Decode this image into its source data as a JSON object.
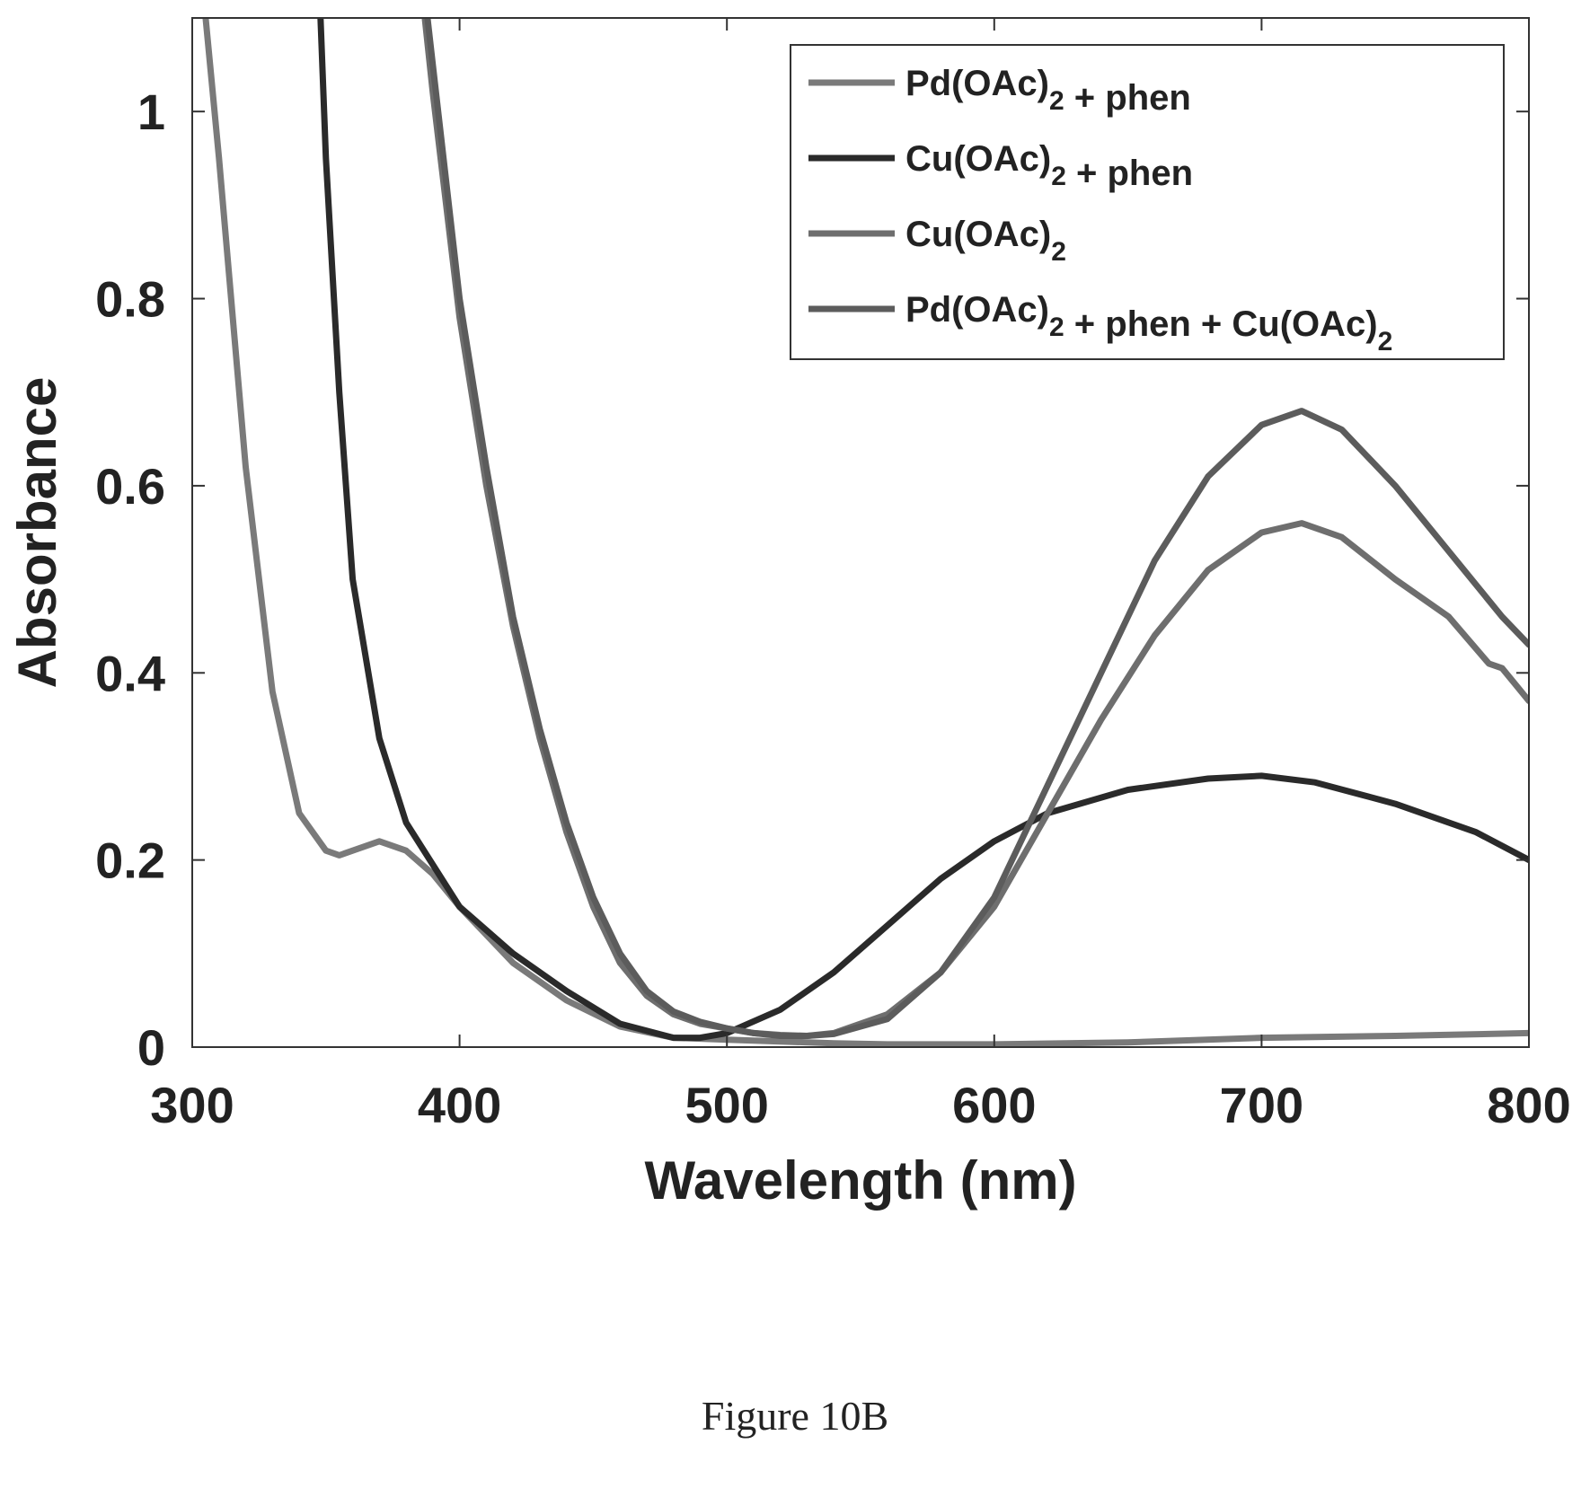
{
  "caption": "Figure 10B",
  "chart_data": {
    "type": "line",
    "title": "",
    "xlabel": "Wavelength (nm)",
    "ylabel": "Absorbance",
    "xlim": [
      300,
      800
    ],
    "ylim": [
      0,
      1.1
    ],
    "xticks": [
      300,
      400,
      500,
      600,
      700,
      800
    ],
    "xtick_labels": [
      "300",
      "400",
      "500",
      "600",
      "700",
      "800"
    ],
    "yticks": [
      0,
      0.2,
      0.4,
      0.6,
      0.8,
      1
    ],
    "ytick_labels": [
      "0",
      "0.2",
      "0.4",
      "0.6",
      "0.8",
      "1"
    ],
    "grid": false,
    "legend_position": "top-right",
    "series": [
      {
        "name": "Pd(OAc)2 + phen",
        "legend_parts": [
          {
            "text": "Pd(OAc)",
            "sub": false
          },
          {
            "text": "2",
            "sub": true
          },
          {
            "text": " + phen",
            "sub": false
          }
        ],
        "color": "#7a7a7a",
        "x": [
          305,
          310,
          320,
          330,
          340,
          350,
          355,
          360,
          370,
          380,
          390,
          400,
          420,
          440,
          460,
          480,
          500,
          520,
          540,
          560,
          600,
          650,
          700,
          750,
          800
        ],
        "y": [
          1.1,
          0.95,
          0.62,
          0.38,
          0.25,
          0.21,
          0.205,
          0.21,
          0.22,
          0.21,
          0.185,
          0.15,
          0.09,
          0.05,
          0.022,
          0.01,
          0.008,
          0.006,
          0.004,
          0.003,
          0.003,
          0.005,
          0.01,
          0.012,
          0.015
        ]
      },
      {
        "name": "Cu(OAc)2 + phen",
        "legend_parts": [
          {
            "text": "Cu(OAc)",
            "sub": false
          },
          {
            "text": "2",
            "sub": true
          },
          {
            "text": " + phen",
            "sub": false
          }
        ],
        "color": "#2a2a2a",
        "x": [
          348,
          350,
          355,
          360,
          370,
          380,
          400,
          420,
          440,
          460,
          480,
          490,
          500,
          520,
          540,
          560,
          580,
          600,
          620,
          650,
          680,
          700,
          720,
          750,
          780,
          800
        ],
        "y": [
          1.1,
          0.95,
          0.7,
          0.5,
          0.33,
          0.24,
          0.15,
          0.1,
          0.06,
          0.025,
          0.01,
          0.01,
          0.015,
          0.04,
          0.08,
          0.13,
          0.18,
          0.22,
          0.25,
          0.275,
          0.287,
          0.29,
          0.283,
          0.26,
          0.23,
          0.2
        ]
      },
      {
        "name": "Cu(OAc)2",
        "legend_parts": [
          {
            "text": "Cu(OAc)",
            "sub": false
          },
          {
            "text": "2",
            "sub": true
          }
        ],
        "color": "#6e6e6e",
        "x": [
          387,
          390,
          400,
          410,
          420,
          430,
          440,
          450,
          460,
          470,
          480,
          490,
          500,
          510,
          520,
          530,
          540,
          560,
          580,
          600,
          620,
          640,
          660,
          680,
          700,
          715,
          730,
          750,
          770,
          785,
          790,
          800
        ],
        "y": [
          1.1,
          1.02,
          0.78,
          0.6,
          0.45,
          0.33,
          0.23,
          0.15,
          0.09,
          0.055,
          0.035,
          0.025,
          0.02,
          0.015,
          0.013,
          0.012,
          0.015,
          0.035,
          0.08,
          0.15,
          0.25,
          0.35,
          0.44,
          0.51,
          0.55,
          0.56,
          0.545,
          0.5,
          0.46,
          0.41,
          0.405,
          0.37
        ]
      },
      {
        "name": "Pd(OAc)2 + phen + Cu(OAc)2",
        "legend_parts": [
          {
            "text": "Pd(OAc)",
            "sub": false
          },
          {
            "text": "2",
            "sub": true
          },
          {
            "text": " + phen + Cu(OAc)",
            "sub": false
          },
          {
            "text": "2",
            "sub": true
          }
        ],
        "color": "#5c5c5c",
        "x": [
          388,
          390,
          400,
          410,
          420,
          430,
          440,
          450,
          460,
          470,
          480,
          490,
          500,
          510,
          520,
          530,
          540,
          560,
          580,
          600,
          620,
          640,
          660,
          680,
          700,
          715,
          730,
          750,
          770,
          790,
          800
        ],
        "y": [
          1.1,
          1.05,
          0.8,
          0.62,
          0.46,
          0.34,
          0.24,
          0.16,
          0.1,
          0.06,
          0.038,
          0.027,
          0.02,
          0.015,
          0.012,
          0.012,
          0.014,
          0.03,
          0.08,
          0.16,
          0.28,
          0.4,
          0.52,
          0.61,
          0.665,
          0.68,
          0.66,
          0.6,
          0.53,
          0.46,
          0.43
        ]
      }
    ]
  }
}
